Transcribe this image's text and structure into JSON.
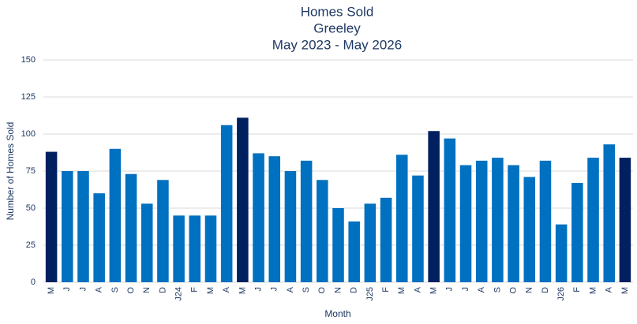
{
  "chart_data": {
    "type": "bar",
    "title": [
      "Homes Sold",
      "Greeley",
      "May 2023 - May 2026"
    ],
    "x_label": "Month",
    "y_label": "Number of Homes Sold",
    "categories": [
      "M",
      "J",
      "J",
      "A",
      "S",
      "O",
      "N",
      "D",
      "J24",
      "F",
      "M",
      "A",
      "M",
      "J",
      "J",
      "A",
      "S",
      "O",
      "N",
      "D",
      "J25",
      "F",
      "M",
      "A",
      "M",
      "J",
      "J",
      "A",
      "S",
      "O",
      "N",
      "D",
      "J26",
      "F",
      "M",
      "A",
      "M"
    ],
    "values": [
      88,
      75,
      75,
      60,
      90,
      73,
      53,
      69,
      45,
      45,
      45,
      106,
      111,
      87,
      85,
      75,
      82,
      69,
      50,
      41,
      53,
      57,
      86,
      72,
      102,
      97,
      79,
      82,
      84,
      79,
      71,
      82,
      39,
      67,
      84,
      93,
      84
    ],
    "colors": [
      "#002060",
      "#0070c0",
      "#0070c0",
      "#0070c0",
      "#0070c0",
      "#0070c0",
      "#0070c0",
      "#0070c0",
      "#0070c0",
      "#0070c0",
      "#0070c0",
      "#0070c0",
      "#002060",
      "#0070c0",
      "#0070c0",
      "#0070c0",
      "#0070c0",
      "#0070c0",
      "#0070c0",
      "#0070c0",
      "#0070c0",
      "#0070c0",
      "#0070c0",
      "#0070c0",
      "#002060",
      "#0070c0",
      "#0070c0",
      "#0070c0",
      "#0070c0",
      "#0070c0",
      "#0070c0",
      "#0070c0",
      "#0070c0",
      "#0070c0",
      "#0070c0",
      "#0070c0",
      "#002060"
    ],
    "ylim": [
      0,
      150
    ],
    "yticks": [
      0,
      25,
      50,
      75,
      100,
      125,
      150
    ],
    "grid": true
  }
}
